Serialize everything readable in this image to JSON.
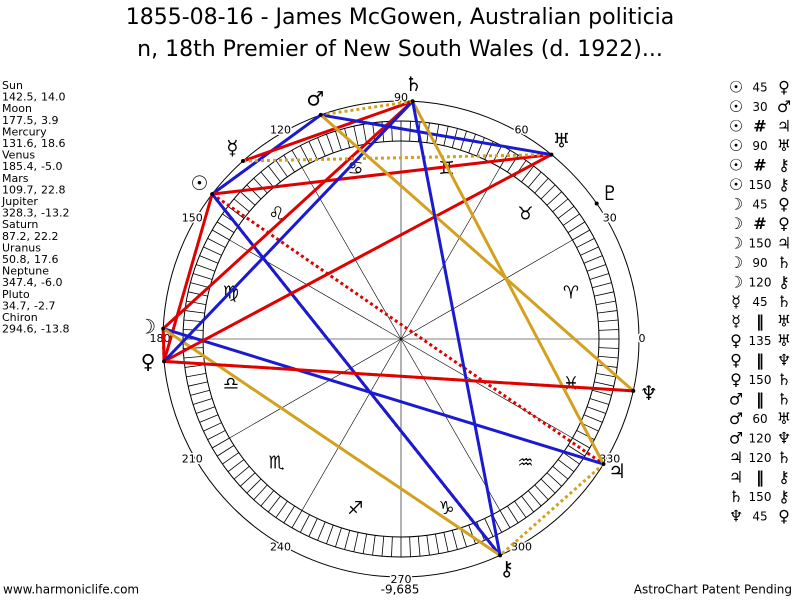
{
  "header": {
    "title_line1": "1855-08-16 - James McGowen, Australian politicia",
    "title_line2": "n, 18th Premier of New South Wales (d. 1922)..."
  },
  "planets": [
    {
      "name": "Sun",
      "glyph": "☉",
      "lon": {
        "value": 142.5,
        "label": "142.5,"
      },
      "lat": {
        "value": 14.0,
        "label": "14.0"
      }
    },
    {
      "name": "Moon",
      "glyph": "☽",
      "lon": {
        "value": 177.5,
        "label": "177.5,"
      },
      "lat": 3.9
    },
    {
      "name": "Mercury",
      "glyph": "☿",
      "lon": {
        "value": 131.6,
        "label": "131.6,"
      },
      "lat": 18.6
    },
    {
      "name": "Venus",
      "glyph": "♀",
      "lon": {
        "value": 185.4,
        "label": "185.4,"
      },
      "lat": {
        "value": -5.0,
        "label": "-5.0"
      }
    },
    {
      "name": "Mars",
      "glyph": "♂",
      "lon": {
        "value": 109.7,
        "label": "109.7,"
      },
      "lat": 22.8
    },
    {
      "name": "Jupiter",
      "glyph": "♃",
      "lon": {
        "value": 328.3,
        "label": "328.3,"
      },
      "lat": -13.2
    },
    {
      "name": "Saturn",
      "glyph": "♄",
      "lon": {
        "value": 87.2,
        "label": "87.2,"
      },
      "lat": 22.2
    },
    {
      "name": "Uranus",
      "glyph": "♅",
      "lon": {
        "value": 50.8,
        "label": "50.8,"
      },
      "lat": 17.6
    },
    {
      "name": "Neptune",
      "glyph": "♆",
      "lon": {
        "value": 347.4,
        "label": "347.4,"
      },
      "lat": {
        "value": -6.0,
        "label": "-6.0"
      }
    },
    {
      "name": "Pluto",
      "glyph": "♇",
      "lon": {
        "value": 34.7,
        "label": "34.7,"
      },
      "lat": -2.7
    },
    {
      "name": "Chiron",
      "glyph": "⚷",
      "lon": {
        "value": 294.6,
        "label": "294.6,"
      },
      "lat": -13.8
    }
  ],
  "aspects": [
    {
      "p1": "☉",
      "aspect": 45,
      "p2": "♀",
      "color": "#e00000",
      "dotted": false
    },
    {
      "p1": "☉",
      "aspect": 30,
      "p2": "♂",
      "color": "#1a1ad0",
      "dotted": false
    },
    {
      "p1": "☉",
      "aspect": "#",
      "p2": "♃",
      "color": "#e00000",
      "dotted": true
    },
    {
      "p1": "☉",
      "aspect": 90,
      "p2": "♅",
      "color": "#e00000",
      "dotted": false
    },
    {
      "p1": "☉",
      "aspect": "#",
      "p2": "⚷",
      "color": "#e00000",
      "dotted": true
    },
    {
      "p1": "☉",
      "aspect": 150,
      "p2": "⚷",
      "color": "#1a1ad0",
      "dotted": false
    },
    {
      "p1": "☽",
      "aspect": 45,
      "p2": "♀",
      "color": "#e00000",
      "dotted": false
    },
    {
      "p1": "☽",
      "aspect": "#",
      "p2": "♀",
      "color": "#e00000",
      "dotted": true
    },
    {
      "p1": "☽",
      "aspect": 150,
      "p2": "♃",
      "color": "#1a1ad0",
      "dotted": false
    },
    {
      "p1": "☽",
      "aspect": 90,
      "p2": "♄",
      "color": "#e00000",
      "dotted": false
    },
    {
      "p1": "☽",
      "aspect": 120,
      "p2": "⚷",
      "color": "#d4a020",
      "dotted": false
    },
    {
      "p1": "☿",
      "aspect": 45,
      "p2": "♄",
      "color": "#e00000",
      "dotted": false
    },
    {
      "p1": "☿",
      "aspect": "‖",
      "p2": "♅",
      "color": "#d4a020",
      "dotted": true
    },
    {
      "p1": "♀",
      "aspect": 135,
      "p2": "♅",
      "color": "#e00000",
      "dotted": false
    },
    {
      "p1": "♀",
      "aspect": "‖",
      "p2": "♆",
      "color": "#d4a020",
      "dotted": true
    },
    {
      "p1": "♀",
      "aspect": 150,
      "p2": "♄",
      "color": "#1a1ad0",
      "dotted": false
    },
    {
      "p1": "♂",
      "aspect": "‖",
      "p2": "♄",
      "color": "#d4a020",
      "dotted": true
    },
    {
      "p1": "♂",
      "aspect": 60,
      "p2": "♅",
      "color": "#1a1ad0",
      "dotted": false
    },
    {
      "p1": "♂",
      "aspect": 120,
      "p2": "♆",
      "color": "#d4a020",
      "dotted": false
    },
    {
      "p1": "♃",
      "aspect": 120,
      "p2": "♄",
      "color": "#d4a020",
      "dotted": false
    },
    {
      "p1": "♃",
      "aspect": "‖",
      "p2": "⚷",
      "color": "#d4a020",
      "dotted": true
    },
    {
      "p1": "♄",
      "aspect": 150,
      "p2": "⚷",
      "color": "#1a1ad0",
      "dotted": false
    },
    {
      "p1": "♆",
      "aspect": 45,
      "p2": "♀",
      "color": "#e00000",
      "dotted": false
    }
  ],
  "degree_ticks": [
    0,
    30,
    60,
    90,
    120,
    150,
    180,
    210,
    240,
    270,
    300,
    330
  ],
  "signs": [
    "♈",
    "♉",
    "♊",
    "♋",
    "♌",
    "♍",
    "♎",
    "♏",
    "♐",
    "♑",
    "♒",
    "♓"
  ],
  "footer": {
    "score": "-9,685",
    "website": "www.harmoniclife.com",
    "credit": "AstroChart Patent Pending"
  }
}
